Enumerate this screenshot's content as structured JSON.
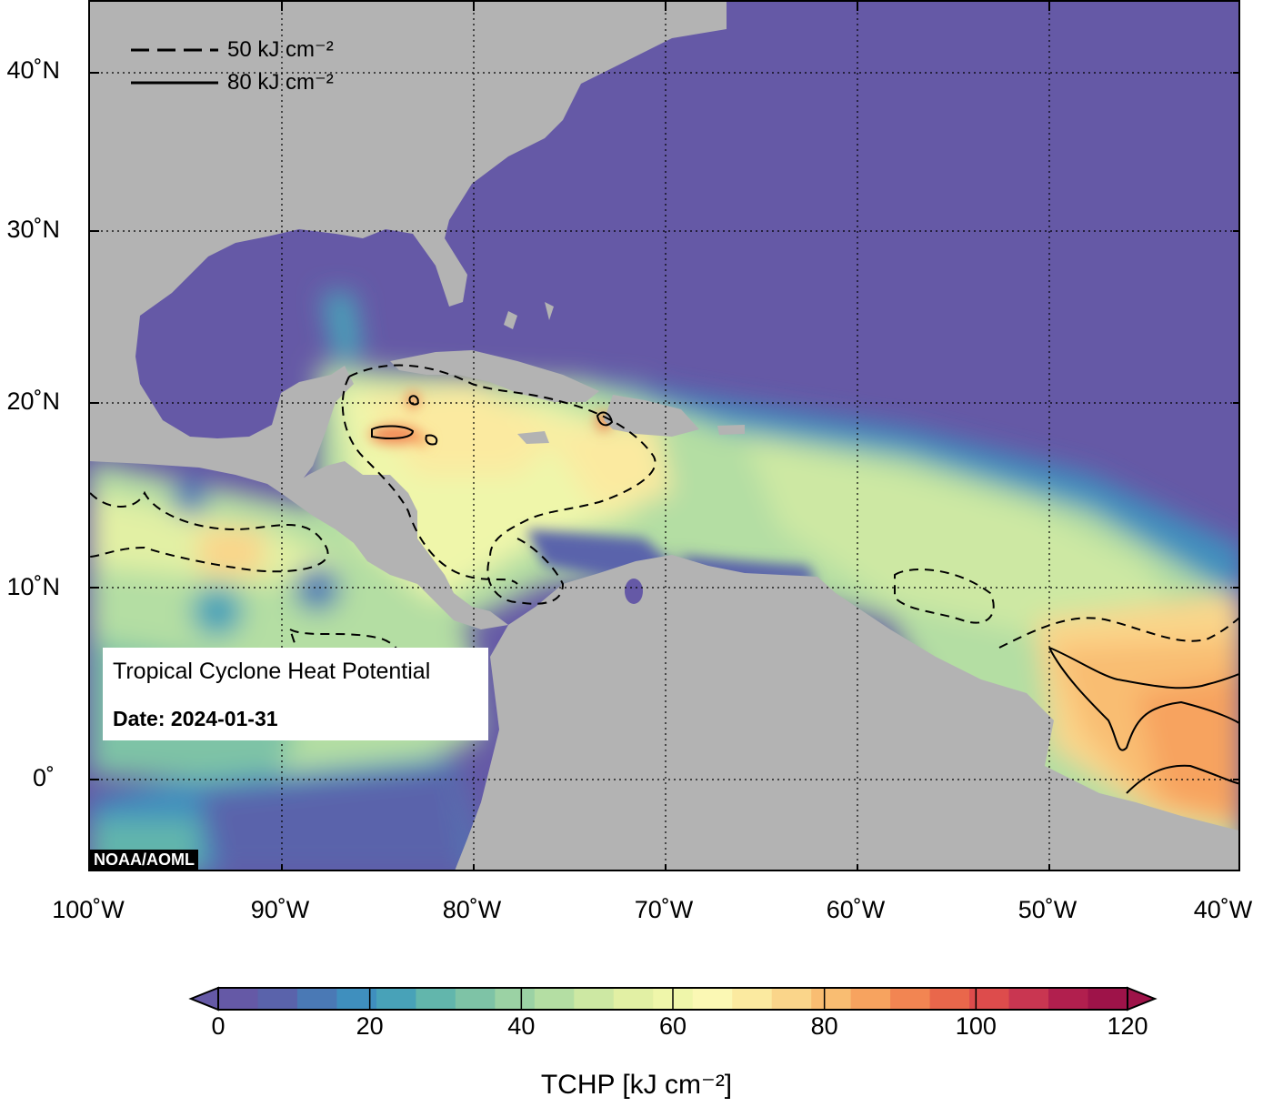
{
  "map": {
    "title": "Tropical Cyclone Heat Potential",
    "date_label": "Date: 2024-01-31",
    "credit": "NOAA/AOML",
    "lon_range": [
      -100,
      -40
    ],
    "lat_range": [
      -5,
      44
    ],
    "lat_ticks": [
      {
        "value": 40,
        "label": "40˚N"
      },
      {
        "value": 30,
        "label": "30˚N"
      },
      {
        "value": 20,
        "label": "20˚N"
      },
      {
        "value": 10,
        "label": "10˚N"
      },
      {
        "value": 0,
        "label": "0˚"
      }
    ],
    "lon_ticks": [
      {
        "value": -100,
        "label": "100˚W"
      },
      {
        "value": -90,
        "label": "90˚W"
      },
      {
        "value": -80,
        "label": "80˚W"
      },
      {
        "value": -70,
        "label": "70˚W"
      },
      {
        "value": -60,
        "label": "60˚W"
      },
      {
        "value": -50,
        "label": "50˚W"
      },
      {
        "value": -40,
        "label": "40˚W"
      }
    ],
    "contour_legend": [
      {
        "style": "dashed",
        "label": "50 kJ cm⁻²"
      },
      {
        "style": "solid",
        "label": "80 kJ cm⁻²"
      }
    ],
    "colors": {
      "land": "#b3b3b3",
      "ocean_low": "#6559a6",
      "gridline": "#000000"
    }
  },
  "colorbar": {
    "title": "TCHP [kJ cm⁻²]",
    "range": [
      0,
      120
    ],
    "ticks": [
      {
        "value": 0,
        "label": "0"
      },
      {
        "value": 20,
        "label": "20"
      },
      {
        "value": 40,
        "label": "40"
      },
      {
        "value": 60,
        "label": "60"
      },
      {
        "value": 80,
        "label": "80"
      },
      {
        "value": 100,
        "label": "100"
      },
      {
        "value": 120,
        "label": "120"
      }
    ],
    "colors": [
      "#6559a6",
      "#5a63ab",
      "#4a79b5",
      "#3f8fbe",
      "#48a2b8",
      "#62b6ac",
      "#7ec3a6",
      "#9bd2a4",
      "#b4dea3",
      "#cde8a3",
      "#e2f0a4",
      "#eff6aa",
      "#fbf8b4",
      "#fbeaa0",
      "#fad58a",
      "#f9bd72",
      "#f7a35f",
      "#f28552",
      "#e9674b",
      "#dd4c4c",
      "#c93651",
      "#b11f4e",
      "#9e1349"
    ]
  }
}
